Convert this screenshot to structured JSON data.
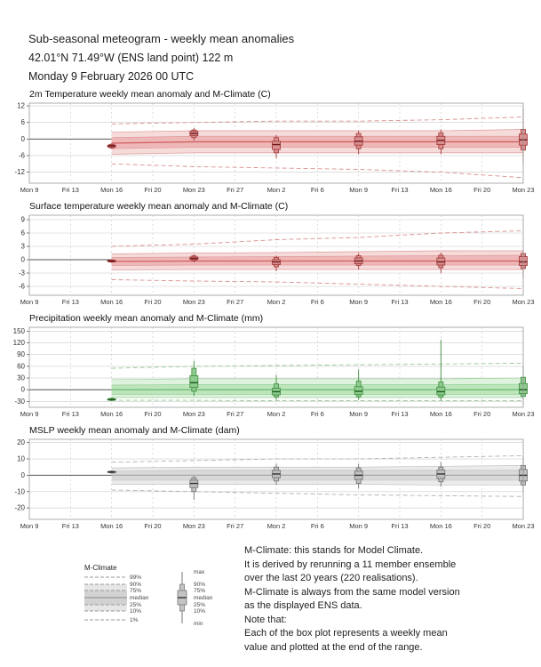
{
  "header": {
    "title": "Sub-seasonal meteogram - weekly mean anomalies",
    "location": "42.01°N 71.49°W (ENS land point) 122 m",
    "base_time": "Monday  9 February 2026 00 UTC"
  },
  "legend": {
    "title": "M-Climate",
    "line_labels": [
      "99%",
      "90%",
      "75%",
      "median",
      "25%",
      "10%",
      "1%"
    ],
    "box_labels": [
      "max",
      "90%",
      "75%",
      "median",
      "25%",
      "10%",
      "min"
    ]
  },
  "notes": {
    "lines": [
      "M-Climate: this stands for Model Climate.",
      "It is derived by rerunning a 11 member ensemble",
      "over the last 20 years  (220 realisations).",
      "M-Climate is always from the same model version",
      "as the displayed ENS data.",
      "Note that:",
      "Each of the box plot represents a weekly mean",
      "value and plotted at the end of the range."
    ]
  },
  "chart_data": [
    {
      "type": "boxplot",
      "title": "2m Temperature weekly mean anomaly and M-Climate (C)",
      "ylim": [
        -16,
        13
      ],
      "yticks": [
        -12,
        -6,
        0,
        6,
        12
      ],
      "categories": [
        "Mon 9",
        "Fri 13",
        "Mon 16",
        "Fri 20",
        "Mon 23",
        "Fri 27",
        "Mon 2",
        "Fri 6",
        "Mon 9",
        "Fri 13",
        "Mon 16",
        "Fri 20",
        "Mon 23"
      ],
      "colors": {
        "band_outer": "#f6dbdb",
        "band_inner": "#efb8b8",
        "band_edge": "#e09a9a",
        "mclim_median": "#d06060",
        "dashed": "#d89090",
        "box_fill": "#d98f8f",
        "box_edge": "#a03535",
        "median": "#6f1a1a"
      },
      "mclimate": {
        "x_idx": [
          2,
          4,
          6,
          8,
          10,
          12
        ],
        "p99": [
          5.5,
          6.0,
          6.5,
          6.5,
          7.0,
          8.0
        ],
        "p90": [
          2.5,
          3.0,
          3.0,
          3.0,
          3.0,
          3.5
        ],
        "p75": [
          0.5,
          1.0,
          1.0,
          1.0,
          1.0,
          1.0
        ],
        "median": [
          -1.5,
          -1.0,
          -1.0,
          -1.0,
          -1.0,
          -1.0
        ],
        "p25": [
          -3.5,
          -3.0,
          -3.0,
          -3.0,
          -3.0,
          -3.0
        ],
        "p10": [
          -5.5,
          -5.0,
          -5.0,
          -5.0,
          -5.0,
          -5.0
        ],
        "p1": [
          -9.0,
          -10.0,
          -10.5,
          -11.0,
          -12.0,
          -14.0
        ]
      },
      "boxes": [
        {
          "x": 2,
          "min": -3.5,
          "p10": -3.2,
          "p25": -2.9,
          "median": -2.5,
          "p75": -2.2,
          "p90": -1.9,
          "max": -1.6
        },
        {
          "x": 4,
          "min": -0.5,
          "p10": 0.5,
          "p25": 1.2,
          "median": 2.0,
          "p75": 2.8,
          "p90": 3.3,
          "max": 4.0
        },
        {
          "x": 6,
          "min": -7.0,
          "p10": -5.0,
          "p25": -3.8,
          "median": -2.0,
          "p75": -0.8,
          "p90": 0.5,
          "max": 1.5
        },
        {
          "x": 8,
          "min": -5.5,
          "p10": -3.5,
          "p25": -2.2,
          "median": -0.8,
          "p75": 0.8,
          "p90": 2.0,
          "max": 3.0
        },
        {
          "x": 10,
          "min": -5.5,
          "p10": -3.5,
          "p25": -2.0,
          "median": -0.5,
          "p75": 1.0,
          "p90": 2.2,
          "max": 3.5
        },
        {
          "x": 12,
          "min": -9.0,
          "p10": -4.0,
          "p25": -2.2,
          "median": -0.3,
          "p75": 1.8,
          "p90": 3.5,
          "max": 11.5
        }
      ]
    },
    {
      "type": "boxplot",
      "title": "Surface temperature weekly mean anomaly and M-Climate (C)",
      "ylim": [
        -8,
        10
      ],
      "yticks": [
        -6,
        -3,
        0,
        3,
        6,
        9
      ],
      "categories": [
        "Mon 9",
        "Fri 13",
        "Mon 16",
        "Fri 20",
        "Mon 23",
        "Fri 27",
        "Mon 2",
        "Fri 6",
        "Mon 9",
        "Fri 13",
        "Mon 16",
        "Fri 20",
        "Mon 23"
      ],
      "colors": {
        "band_outer": "#f6dbdb",
        "band_inner": "#efb8b8",
        "band_edge": "#e09a9a",
        "mclim_median": "#d06060",
        "dashed": "#d89090",
        "box_fill": "#d98f8f",
        "box_edge": "#a03535",
        "median": "#6f1a1a"
      },
      "mclimate": {
        "x_idx": [
          2,
          4,
          6,
          8,
          10,
          12
        ],
        "p99": [
          3.0,
          3.5,
          4.5,
          5.0,
          6.0,
          6.5
        ],
        "p90": [
          1.3,
          1.5,
          1.6,
          1.8,
          2.0,
          2.0
        ],
        "p75": [
          0.5,
          0.6,
          0.7,
          0.8,
          0.9,
          1.0
        ],
        "median": [
          -0.4,
          -0.3,
          -0.3,
          -0.3,
          -0.3,
          -0.3
        ],
        "p25": [
          -1.3,
          -1.2,
          -1.2,
          -1.2,
          -1.2,
          -1.2
        ],
        "p10": [
          -2.3,
          -2.2,
          -2.2,
          -2.2,
          -2.2,
          -2.2
        ],
        "p1": [
          -4.5,
          -4.8,
          -5.0,
          -5.5,
          -6.0,
          -6.5
        ]
      },
      "boxes": [
        {
          "x": 2,
          "min": -0.7,
          "p10": -0.55,
          "p25": -0.45,
          "median": -0.3,
          "p75": -0.15,
          "p90": -0.05,
          "max": 0.1
        },
        {
          "x": 4,
          "min": -0.6,
          "p10": -0.2,
          "p25": 0.05,
          "median": 0.3,
          "p75": 0.6,
          "p90": 0.85,
          "max": 1.2
        },
        {
          "x": 6,
          "min": -2.6,
          "p10": -1.6,
          "p25": -1.1,
          "median": -0.5,
          "p75": 0.0,
          "p90": 0.5,
          "max": 0.9
        },
        {
          "x": 8,
          "min": -2.2,
          "p10": -1.3,
          "p25": -0.9,
          "median": -0.3,
          "p75": 0.4,
          "p90": 0.9,
          "max": 1.5
        },
        {
          "x": 10,
          "min": -3.0,
          "p10": -1.8,
          "p25": -1.2,
          "median": -0.5,
          "p75": 0.4,
          "p90": 1.0,
          "max": 1.6
        },
        {
          "x": 12,
          "min": -4.0,
          "p10": -2.0,
          "p25": -1.3,
          "median": -0.5,
          "p75": 0.7,
          "p90": 1.4,
          "max": 2.2
        }
      ]
    },
    {
      "type": "boxplot",
      "title": "Precipitation weekly mean anomaly and M-Climate (mm)",
      "ylim": [
        -45,
        160
      ],
      "yticks": [
        -30,
        0,
        30,
        60,
        90,
        120,
        150
      ],
      "categories": [
        "Mon 9",
        "Fri 13",
        "Mon 16",
        "Fri 20",
        "Mon 23",
        "Fri 27",
        "Mon 2",
        "Fri 6",
        "Mon 9",
        "Fri 13",
        "Mon 16",
        "Fri 20",
        "Mon 23"
      ],
      "colors": {
        "band_outer": "#def2de",
        "band_inner": "#bce5bc",
        "band_edge": "#99d099",
        "mclim_median": "#6ab86a",
        "dashed": "#95c995",
        "box_fill": "#8ecb8e",
        "box_edge": "#3d8b3d",
        "median": "#1e5c1e"
      },
      "mclimate": {
        "x_idx": [
          2,
          4,
          6,
          8,
          10,
          12
        ],
        "p99": [
          55,
          60,
          62,
          64,
          66,
          68
        ],
        "p90": [
          26,
          28,
          28,
          28,
          28,
          30
        ],
        "p75": [
          12,
          13,
          13,
          13,
          13,
          14
        ],
        "median": [
          0,
          0,
          0,
          0,
          0,
          0
        ],
        "p25": [
          -12,
          -12,
          -12,
          -12,
          -12,
          -12
        ],
        "p10": [
          -20,
          -20,
          -20,
          -20,
          -20,
          -20
        ],
        "p1": [
          -27,
          -27,
          -28,
          -28,
          -28,
          -28
        ]
      },
      "boxes": [
        {
          "x": 2,
          "min": -29,
          "p10": -27.5,
          "p25": -26.5,
          "median": -25,
          "p75": -23.5,
          "p90": -22,
          "max": -20
        },
        {
          "x": 4,
          "min": -16,
          "p10": -4,
          "p25": 6,
          "median": 18,
          "p75": 36,
          "p90": 55,
          "max": 74
        },
        {
          "x": 6,
          "min": -26,
          "p10": -18,
          "p25": -13,
          "median": -5,
          "p75": 4,
          "p90": 15,
          "max": 38
        },
        {
          "x": 8,
          "min": -26,
          "p10": -18,
          "p25": -12,
          "median": -4,
          "p75": 8,
          "p90": 22,
          "max": 52
        },
        {
          "x": 10,
          "min": -27,
          "p10": -19,
          "p25": -13,
          "median": -5,
          "p75": 7,
          "p90": 20,
          "max": 128
        },
        {
          "x": 12,
          "min": -26,
          "p10": -17,
          "p25": -10,
          "median": 0,
          "p75": 16,
          "p90": 32,
          "max": 60
        }
      ]
    },
    {
      "type": "boxplot",
      "title": "MSLP weekly mean anomaly and M-Climate (dam)",
      "ylim": [
        -27,
        22
      ],
      "yticks": [
        -20,
        -10,
        0,
        10,
        20
      ],
      "categories": [
        "Mon 9",
        "Fri 13",
        "Mon 16",
        "Fri 20",
        "Mon 23",
        "Fri 27",
        "Mon 2",
        "Fri 6",
        "Mon 9",
        "Fri 13",
        "Mon 16",
        "Fri 20",
        "Mon 23"
      ],
      "colors": {
        "band_outer": "#ebebeb",
        "band_inner": "#d9d9d9",
        "band_edge": "#c2c2c2",
        "mclim_median": "#a8a8a8",
        "dashed": "#b0b0b0",
        "box_fill": "#c0c0c0",
        "box_edge": "#6e6e6e",
        "median": "#2f2f2f"
      },
      "mclimate": {
        "x_idx": [
          2,
          4,
          6,
          8,
          10,
          12
        ],
        "p99": [
          8,
          9,
          10,
          10,
          11,
          12
        ],
        "p90": [
          4.5,
          5,
          5,
          5,
          5.5,
          6
        ],
        "p75": [
          2.5,
          3,
          3,
          3,
          3,
          3
        ],
        "median": [
          0,
          0,
          0,
          0,
          0,
          0
        ],
        "p25": [
          -3,
          -3,
          -3,
          -3,
          -3,
          -3
        ],
        "p10": [
          -5.5,
          -5.5,
          -5.5,
          -5.5,
          -6,
          -6
        ],
        "p1": [
          -9,
          -10,
          -11,
          -12,
          -12.5,
          -13
        ]
      },
      "boxes": [
        {
          "x": 2,
          "min": 1.0,
          "p10": 1.4,
          "p25": 1.7,
          "median": 2.0,
          "p75": 2.3,
          "p90": 2.6,
          "max": 3.0
        },
        {
          "x": 4,
          "min": -15,
          "p10": -10,
          "p25": -7.5,
          "median": -5,
          "p75": -3,
          "p90": -1.5,
          "max": -0.5
        },
        {
          "x": 6,
          "min": -6,
          "p10": -3.5,
          "p25": -1.5,
          "median": 0.8,
          "p75": 3,
          "p90": 5,
          "max": 7
        },
        {
          "x": 8,
          "min": -8,
          "p10": -5,
          "p25": -2.5,
          "median": 0,
          "p75": 2.5,
          "p90": 4.5,
          "max": 7
        },
        {
          "x": 10,
          "min": -7,
          "p10": -4,
          "p25": -2,
          "median": 0.8,
          "p75": 3.2,
          "p90": 5,
          "max": 8
        },
        {
          "x": 12,
          "min": -10,
          "p10": -6,
          "p25": -3.5,
          "median": 0,
          "p75": 3.5,
          "p90": 6,
          "max": 12
        }
      ]
    }
  ]
}
